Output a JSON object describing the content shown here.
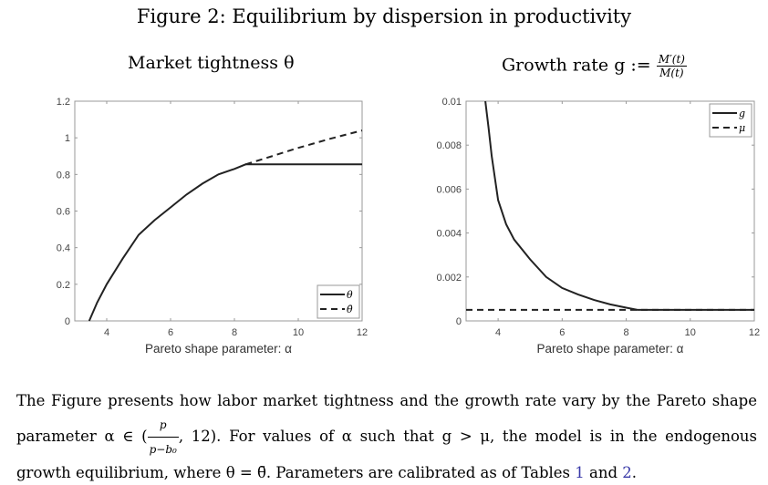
{
  "figure_title": "Figure 2: Equilibrium by dispersion in productivity",
  "panel_titles": {
    "left": "Market tightness θ",
    "right_prefix": "Growth rate g :=",
    "right_num": "M′(t)",
    "right_den": "M(t)"
  },
  "caption": {
    "part1": "The Figure presents how labor market tightness and the growth rate vary by the Pareto shape parameter α ∈ (",
    "frac_num": "p",
    "frac_den": "p−b₀",
    "part2": ", 12). For values of α such that g > μ, the model is in the endogenous growth equilibrium, where θ = θ̄. Parameters are calibrated as of Tables ",
    "ref1": "1",
    "and": " and ",
    "ref2": "2",
    "end": "."
  },
  "chart_data": [
    {
      "type": "line",
      "title": "Market tightness θ",
      "xlabel": "Pareto shape parameter: α",
      "ylabel": "",
      "xlim": [
        3,
        12
      ],
      "ylim": [
        0,
        1.2
      ],
      "xticks": [
        "4",
        "6",
        "8",
        "10",
        "12"
      ],
      "xtick_values": [
        4,
        6,
        8,
        10,
        12
      ],
      "yticks": [
        "0",
        "0.2",
        "0.4",
        "0.6",
        "0.8",
        "1",
        "1.2"
      ],
      "ytick_values": [
        0,
        0.2,
        0.4,
        0.6,
        0.8,
        1,
        1.2
      ],
      "legend_position": "bottom-right",
      "series": [
        {
          "name": "θ",
          "style": "solid",
          "x": [
            3.45,
            3.7,
            4,
            4.5,
            5,
            5.5,
            6,
            6.5,
            7,
            7.5,
            8,
            8.35,
            9,
            10,
            11,
            12
          ],
          "y": [
            0,
            0.1,
            0.2,
            0.34,
            0.47,
            0.55,
            0.62,
            0.69,
            0.75,
            0.8,
            0.83,
            0.855,
            0.855,
            0.855,
            0.855,
            0.855
          ]
        },
        {
          "name": "θ̄",
          "style": "dashed",
          "x": [
            8.35,
            9,
            10,
            11,
            12
          ],
          "y": [
            0.855,
            0.89,
            0.945,
            0.995,
            1.04
          ]
        }
      ]
    },
    {
      "type": "line",
      "title": "Growth rate g",
      "xlabel": "Pareto shape parameter: α",
      "ylabel": "",
      "xlim": [
        3,
        12
      ],
      "ylim": [
        0,
        0.01
      ],
      "xticks": [
        "4",
        "6",
        "8",
        "10",
        "12"
      ],
      "xtick_values": [
        4,
        6,
        8,
        10,
        12
      ],
      "yticks": [
        "0",
        "0.002",
        "0.004",
        "0.006",
        "0.008",
        "0.01"
      ],
      "ytick_values": [
        0,
        0.002,
        0.004,
        0.006,
        0.008,
        0.01
      ],
      "legend_position": "top-right",
      "series": [
        {
          "name": "g",
          "style": "solid",
          "x": [
            3.6,
            3.7,
            3.8,
            4,
            4.25,
            4.5,
            5,
            5.5,
            6,
            6.5,
            7,
            7.5,
            8,
            8.35,
            9,
            10,
            11,
            12
          ],
          "y": [
            0.01,
            0.0088,
            0.0075,
            0.0055,
            0.0044,
            0.0037,
            0.0028,
            0.002,
            0.0015,
            0.0012,
            0.00095,
            0.00075,
            0.0006,
            0.0005,
            0.0005,
            0.0005,
            0.0005,
            0.0005
          ]
        },
        {
          "name": "μ",
          "style": "dashed",
          "x": [
            3,
            12
          ],
          "y": [
            0.0005,
            0.0005
          ]
        }
      ]
    }
  ]
}
